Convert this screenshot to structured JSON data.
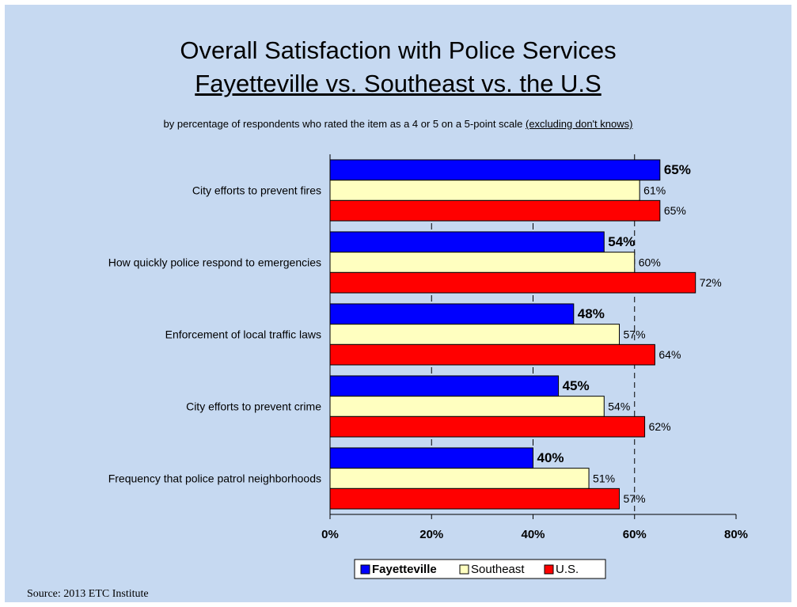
{
  "title_line1": "Overall Satisfaction with Police Services",
  "title_line2": "Fayetteville vs. Southeast vs. the U.S",
  "subtitle_main": "by percentage of respondents who rated the item as a 4 or 5 on a 5-point scale ",
  "subtitle_note": "(excluding don't knows)",
  "source": "Source:  2013 ETC Institute",
  "chart_data": {
    "type": "bar",
    "orientation": "horizontal",
    "categories": [
      "City efforts to prevent fires",
      "How quickly police respond to emergencies",
      "Enforcement of local traffic laws",
      "City efforts to prevent crime",
      "Frequency that police patrol neighborhoods"
    ],
    "series": [
      {
        "name": "Fayetteville",
        "color": "#0000ff",
        "values": [
          65,
          54,
          48,
          45,
          40
        ],
        "labels": [
          "65%",
          "54%",
          "48%",
          "45%",
          "40%"
        ]
      },
      {
        "name": "Southeast",
        "color": "#ffffc0",
        "values": [
          61,
          60,
          57,
          54,
          51
        ],
        "labels": [
          "61%",
          "60%",
          "57%",
          "54%",
          "51%"
        ]
      },
      {
        "name": "U.S.",
        "color": "#ff0000",
        "values": [
          65,
          72,
          64,
          62,
          57
        ],
        "labels": [
          "65%",
          "72%",
          "64%",
          "62%",
          "57%"
        ]
      }
    ],
    "xlim": [
      0,
      80
    ],
    "xticks": [
      "0%",
      "20%",
      "40%",
      "60%",
      "80%"
    ],
    "reference_line_value": 60,
    "legend_position": "bottom",
    "grid": false
  }
}
